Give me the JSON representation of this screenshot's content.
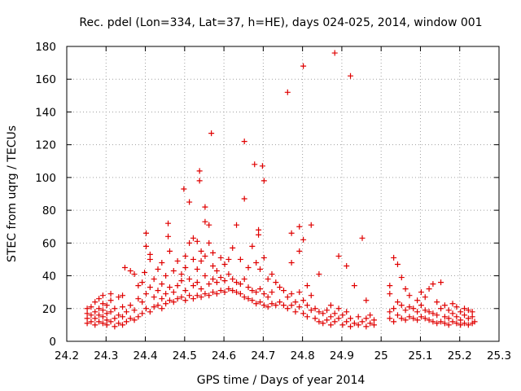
{
  "chart_data": {
    "type": "scatter",
    "title": "Rec. pdel (Lon=334, Lat=37, h=HE), days 024-025, 2014, window 001",
    "xlabel": "GPS time / Days of year 2014",
    "ylabel": "STEC from uqrg / TECUs",
    "xlim": [
      24.2,
      25.3
    ],
    "ylim": [
      0,
      180
    ],
    "x_ticks": [
      "24.2",
      "24.3",
      "24.4",
      "24.5",
      "24.6",
      "24.7",
      "24.8",
      "24.9",
      "25",
      "25.1",
      "25.2",
      "25.3"
    ],
    "y_ticks": [
      "0",
      "20",
      "40",
      "60",
      "80",
      "100",
      "120",
      "140",
      "160",
      "180"
    ],
    "grid": true,
    "marker": "+",
    "marker_color": "#e00000",
    "series": [
      {
        "name": "STEC",
        "points": [
          [
            24.252,
            11
          ],
          [
            24.252,
            14
          ],
          [
            24.252,
            17
          ],
          [
            24.252,
            20
          ],
          [
            24.262,
            12
          ],
          [
            24.262,
            16
          ],
          [
            24.262,
            21
          ],
          [
            24.272,
            10
          ],
          [
            24.272,
            14
          ],
          [
            24.272,
            18
          ],
          [
            24.272,
            24
          ],
          [
            24.282,
            12
          ],
          [
            24.282,
            16
          ],
          [
            24.282,
            20
          ],
          [
            24.282,
            26
          ],
          [
            24.292,
            11
          ],
          [
            24.292,
            15
          ],
          [
            24.292,
            19
          ],
          [
            24.292,
            23
          ],
          [
            24.292,
            28
          ],
          [
            24.302,
            10
          ],
          [
            24.302,
            13
          ],
          [
            24.302,
            17
          ],
          [
            24.302,
            22
          ],
          [
            24.312,
            12
          ],
          [
            24.312,
            18
          ],
          [
            24.312,
            25
          ],
          [
            24.312,
            29
          ],
          [
            24.322,
            9
          ],
          [
            24.322,
            14
          ],
          [
            24.322,
            20
          ],
          [
            24.332,
            11
          ],
          [
            24.332,
            16
          ],
          [
            24.332,
            27
          ],
          [
            24.342,
            10
          ],
          [
            24.342,
            15
          ],
          [
            24.342,
            21
          ],
          [
            24.342,
            28
          ],
          [
            24.348,
            45
          ],
          [
            24.352,
            12
          ],
          [
            24.352,
            18
          ],
          [
            24.362,
            43
          ],
          [
            24.362,
            14
          ],
          [
            24.362,
            22
          ],
          [
            24.372,
            13
          ],
          [
            24.372,
            19
          ],
          [
            24.372,
            41
          ],
          [
            24.382,
            15
          ],
          [
            24.382,
            26
          ],
          [
            24.382,
            34
          ],
          [
            24.392,
            17
          ],
          [
            24.392,
            24
          ],
          [
            24.392,
            36
          ],
          [
            24.398,
            42
          ],
          [
            24.402,
            66
          ],
          [
            24.402,
            58
          ],
          [
            24.402,
            20
          ],
          [
            24.402,
            29
          ],
          [
            24.412,
            18
          ],
          [
            24.412,
            33
          ],
          [
            24.412,
            53
          ],
          [
            24.412,
            50
          ],
          [
            24.422,
            21
          ],
          [
            24.422,
            27
          ],
          [
            24.422,
            38
          ],
          [
            24.432,
            22
          ],
          [
            24.432,
            31
          ],
          [
            24.432,
            44
          ],
          [
            24.442,
            20
          ],
          [
            24.442,
            26
          ],
          [
            24.442,
            35
          ],
          [
            24.442,
            48
          ],
          [
            24.452,
            23
          ],
          [
            24.452,
            29
          ],
          [
            24.452,
            40
          ],
          [
            24.458,
            72
          ],
          [
            24.458,
            64
          ],
          [
            24.462,
            25
          ],
          [
            24.462,
            33
          ],
          [
            24.462,
            55
          ],
          [
            24.472,
            24
          ],
          [
            24.472,
            30
          ],
          [
            24.472,
            43
          ],
          [
            24.482,
            26
          ],
          [
            24.482,
            34
          ],
          [
            24.482,
            49
          ],
          [
            24.492,
            27
          ],
          [
            24.492,
            37
          ],
          [
            24.492,
            41
          ],
          [
            24.498,
            93
          ],
          [
            24.502,
            25
          ],
          [
            24.502,
            31
          ],
          [
            24.502,
            45
          ],
          [
            24.502,
            52
          ],
          [
            24.512,
            85
          ],
          [
            24.512,
            28
          ],
          [
            24.512,
            38
          ],
          [
            24.512,
            60
          ],
          [
            24.522,
            26
          ],
          [
            24.522,
            34
          ],
          [
            24.522,
            50
          ],
          [
            24.522,
            63
          ],
          [
            24.532,
            28
          ],
          [
            24.532,
            36
          ],
          [
            24.532,
            44
          ],
          [
            24.532,
            61
          ],
          [
            24.538,
            104
          ],
          [
            24.538,
            98
          ],
          [
            24.542,
            27
          ],
          [
            24.542,
            32
          ],
          [
            24.542,
            49
          ],
          [
            24.542,
            55
          ],
          [
            24.552,
            82
          ],
          [
            24.552,
            73
          ],
          [
            24.552,
            29
          ],
          [
            24.552,
            40
          ],
          [
            24.552,
            52
          ],
          [
            24.562,
            71
          ],
          [
            24.562,
            28
          ],
          [
            24.562,
            35
          ],
          [
            24.562,
            60
          ],
          [
            24.568,
            127
          ],
          [
            24.572,
            30
          ],
          [
            24.572,
            38
          ],
          [
            24.572,
            46
          ],
          [
            24.572,
            54
          ],
          [
            24.582,
            29
          ],
          [
            24.582,
            36
          ],
          [
            24.582,
            43
          ],
          [
            24.592,
            31
          ],
          [
            24.592,
            39
          ],
          [
            24.592,
            51
          ],
          [
            24.602,
            30
          ],
          [
            24.602,
            37
          ],
          [
            24.602,
            47
          ],
          [
            24.612,
            32
          ],
          [
            24.612,
            41
          ],
          [
            24.612,
            50
          ],
          [
            24.622,
            31
          ],
          [
            24.622,
            38
          ],
          [
            24.622,
            57
          ],
          [
            24.632,
            30
          ],
          [
            24.632,
            36
          ],
          [
            24.632,
            71
          ],
          [
            24.642,
            29
          ],
          [
            24.642,
            35
          ],
          [
            24.642,
            50
          ],
          [
            24.652,
            122
          ],
          [
            24.652,
            87
          ],
          [
            24.652,
            38
          ],
          [
            24.652,
            27
          ],
          [
            24.662,
            26
          ],
          [
            24.662,
            33
          ],
          [
            24.662,
            45
          ],
          [
            24.672,
            25
          ],
          [
            24.672,
            31
          ],
          [
            24.672,
            58
          ],
          [
            24.678,
            108
          ],
          [
            24.682,
            23
          ],
          [
            24.682,
            30
          ],
          [
            24.682,
            48
          ],
          [
            24.688,
            68
          ],
          [
            24.688,
            65
          ],
          [
            24.692,
            24
          ],
          [
            24.692,
            32
          ],
          [
            24.692,
            44
          ],
          [
            24.698,
            107
          ],
          [
            24.702,
            98
          ],
          [
            24.702,
            22
          ],
          [
            24.702,
            29
          ],
          [
            24.702,
            51
          ],
          [
            24.712,
            21
          ],
          [
            24.712,
            27
          ],
          [
            24.712,
            38
          ],
          [
            24.722,
            23
          ],
          [
            24.722,
            30
          ],
          [
            24.722,
            41
          ],
          [
            24.732,
            22
          ],
          [
            24.732,
            36
          ],
          [
            24.742,
            24
          ],
          [
            24.742,
            33
          ],
          [
            24.752,
            22
          ],
          [
            24.752,
            31
          ],
          [
            24.762,
            152
          ],
          [
            24.762,
            20
          ],
          [
            24.762,
            27
          ],
          [
            24.772,
            66
          ],
          [
            24.772,
            48
          ],
          [
            24.772,
            22
          ],
          [
            24.772,
            29
          ],
          [
            24.782,
            18
          ],
          [
            24.782,
            24
          ],
          [
            24.792,
            70
          ],
          [
            24.792,
            55
          ],
          [
            24.792,
            21
          ],
          [
            24.792,
            30
          ],
          [
            24.802,
            168
          ],
          [
            24.802,
            62
          ],
          [
            24.802,
            17
          ],
          [
            24.802,
            25
          ],
          [
            24.812,
            15
          ],
          [
            24.812,
            22
          ],
          [
            24.812,
            34
          ],
          [
            24.822,
            71
          ],
          [
            24.822,
            19
          ],
          [
            24.822,
            28
          ],
          [
            24.832,
            14
          ],
          [
            24.832,
            20
          ],
          [
            24.842,
            12
          ],
          [
            24.842,
            18
          ],
          [
            24.842,
            41
          ],
          [
            24.852,
            11
          ],
          [
            24.852,
            17
          ],
          [
            24.862,
            13
          ],
          [
            24.862,
            19
          ],
          [
            24.872,
            10
          ],
          [
            24.872,
            15
          ],
          [
            24.872,
            22
          ],
          [
            24.882,
            176
          ],
          [
            24.882,
            12
          ],
          [
            24.882,
            17
          ],
          [
            24.892,
            52
          ],
          [
            24.892,
            14
          ],
          [
            24.892,
            20
          ],
          [
            24.902,
            10
          ],
          [
            24.902,
            16
          ],
          [
            24.912,
            46
          ],
          [
            24.912,
            12
          ],
          [
            24.912,
            18
          ],
          [
            24.922,
            162
          ],
          [
            24.922,
            9
          ],
          [
            24.922,
            14
          ],
          [
            24.932,
            11
          ],
          [
            24.932,
            34
          ],
          [
            24.942,
            10
          ],
          [
            24.942,
            15
          ],
          [
            24.952,
            63
          ],
          [
            24.952,
            12
          ],
          [
            24.962,
            9
          ],
          [
            24.962,
            14
          ],
          [
            24.962,
            25
          ],
          [
            24.972,
            11
          ],
          [
            24.972,
            16
          ],
          [
            24.982,
            10
          ],
          [
            24.982,
            13
          ],
          [
            25.022,
            34
          ],
          [
            25.022,
            29
          ],
          [
            25.022,
            14
          ],
          [
            25.022,
            18
          ],
          [
            25.032,
            51
          ],
          [
            25.032,
            12
          ],
          [
            25.032,
            20
          ],
          [
            25.042,
            47
          ],
          [
            25.042,
            16
          ],
          [
            25.042,
            24
          ],
          [
            25.052,
            39
          ],
          [
            25.052,
            14
          ],
          [
            25.052,
            22
          ],
          [
            25.062,
            32
          ],
          [
            25.062,
            13
          ],
          [
            25.062,
            19
          ],
          [
            25.072,
            15
          ],
          [
            25.072,
            21
          ],
          [
            25.072,
            28
          ],
          [
            25.082,
            14
          ],
          [
            25.082,
            20
          ],
          [
            25.092,
            13
          ],
          [
            25.092,
            18
          ],
          [
            25.092,
            25
          ],
          [
            25.102,
            15
          ],
          [
            25.102,
            22
          ],
          [
            25.102,
            30
          ],
          [
            25.112,
            14
          ],
          [
            25.112,
            19
          ],
          [
            25.112,
            27
          ],
          [
            25.122,
            13
          ],
          [
            25.122,
            18
          ],
          [
            25.122,
            32
          ],
          [
            25.132,
            12
          ],
          [
            25.132,
            17
          ],
          [
            25.132,
            35
          ],
          [
            25.142,
            11
          ],
          [
            25.142,
            16
          ],
          [
            25.142,
            24
          ],
          [
            25.152,
            36
          ],
          [
            25.152,
            12
          ],
          [
            25.152,
            20
          ],
          [
            25.162,
            11
          ],
          [
            25.162,
            15
          ],
          [
            25.162,
            22
          ],
          [
            25.172,
            10
          ],
          [
            25.172,
            14
          ],
          [
            25.172,
            19
          ],
          [
            25.182,
            12
          ],
          [
            25.182,
            17
          ],
          [
            25.182,
            23
          ],
          [
            25.192,
            11
          ],
          [
            25.192,
            15
          ],
          [
            25.192,
            21
          ],
          [
            25.202,
            10
          ],
          [
            25.202,
            13
          ],
          [
            25.202,
            18
          ],
          [
            25.212,
            11
          ],
          [
            25.212,
            16
          ],
          [
            25.212,
            20
          ],
          [
            25.222,
            10
          ],
          [
            25.222,
            14
          ],
          [
            25.222,
            19
          ],
          [
            25.232,
            11
          ],
          [
            25.232,
            15
          ],
          [
            25.232,
            18
          ],
          [
            25.238,
            12
          ]
        ]
      }
    ]
  }
}
